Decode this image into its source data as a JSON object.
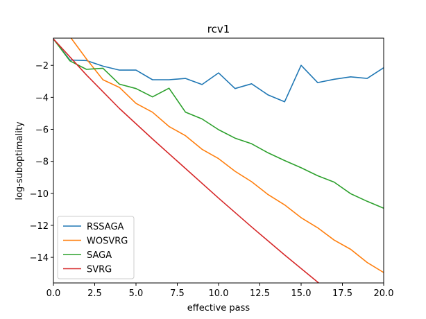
{
  "chart_data": {
    "type": "line",
    "title": "rcv1",
    "xlabel": "effective pass",
    "ylabel": "log-suboptimality",
    "xlim": [
      0,
      20
    ],
    "ylim": [
      -15.6,
      -0.3
    ],
    "xticks": [
      0,
      2.5,
      5,
      7.5,
      10,
      12.5,
      15,
      17.5,
      20
    ],
    "xtick_labels": [
      "0.0",
      "2.5",
      "5.0",
      "7.5",
      "10.0",
      "12.5",
      "15.0",
      "17.5",
      "20.0"
    ],
    "yticks": [
      -2,
      -4,
      -6,
      -8,
      -10,
      -12,
      -14
    ],
    "ytick_labels": [
      "−2",
      "−4",
      "−6",
      "−8",
      "−10",
      "−12",
      "−14"
    ],
    "grid": false,
    "legend_position": "lower-left",
    "series": [
      {
        "name": "RSSAGA",
        "color": "#1f77b4",
        "x": [
          0,
          1,
          2,
          3,
          4,
          5,
          6,
          7,
          8,
          9,
          10,
          11,
          12,
          13,
          14,
          15,
          16,
          17,
          18,
          19,
          20
        ],
        "values": [
          -0.35,
          -1.67,
          -1.7,
          -2.05,
          -2.3,
          -2.3,
          -2.9,
          -2.9,
          -2.82,
          -3.2,
          -2.47,
          -3.45,
          -3.15,
          -3.85,
          -4.28,
          -2.0,
          -3.08,
          -2.87,
          -2.72,
          -2.82,
          -2.15
        ]
      },
      {
        "name": "WOSVRG",
        "color": "#ff7f0e",
        "x": [
          0,
          1,
          2,
          3,
          4,
          5,
          6,
          7,
          8,
          9,
          10,
          11,
          12,
          13,
          14,
          15,
          16,
          17,
          18,
          19,
          20
        ],
        "values": [
          -0.2,
          -0.2,
          -1.6,
          -2.9,
          -3.38,
          -4.38,
          -4.93,
          -5.82,
          -6.4,
          -7.25,
          -7.83,
          -8.62,
          -9.27,
          -10.08,
          -10.72,
          -11.52,
          -12.15,
          -12.92,
          -13.5,
          -14.32,
          -14.95
        ]
      },
      {
        "name": "SAGA",
        "color": "#2ca02c",
        "x": [
          0,
          1,
          2,
          3,
          4,
          5,
          6,
          7,
          8,
          9,
          10,
          11,
          12,
          13,
          14,
          15,
          16,
          17,
          18,
          19,
          20
        ],
        "values": [
          -0.35,
          -1.72,
          -2.25,
          -2.18,
          -3.18,
          -3.45,
          -3.97,
          -3.43,
          -4.93,
          -5.35,
          -6.02,
          -6.55,
          -6.9,
          -7.47,
          -7.95,
          -8.4,
          -8.9,
          -9.3,
          -10.02,
          -10.5,
          -10.93
        ]
      },
      {
        "name": "SVRG",
        "color": "#d62728",
        "x": [
          0,
          2,
          4,
          6,
          8,
          10,
          12,
          14,
          16,
          16.5
        ],
        "values": [
          -0.35,
          -2.6,
          -4.7,
          -6.6,
          -8.45,
          -10.3,
          -12.1,
          -13.85,
          -15.55,
          -15.95
        ]
      }
    ]
  }
}
